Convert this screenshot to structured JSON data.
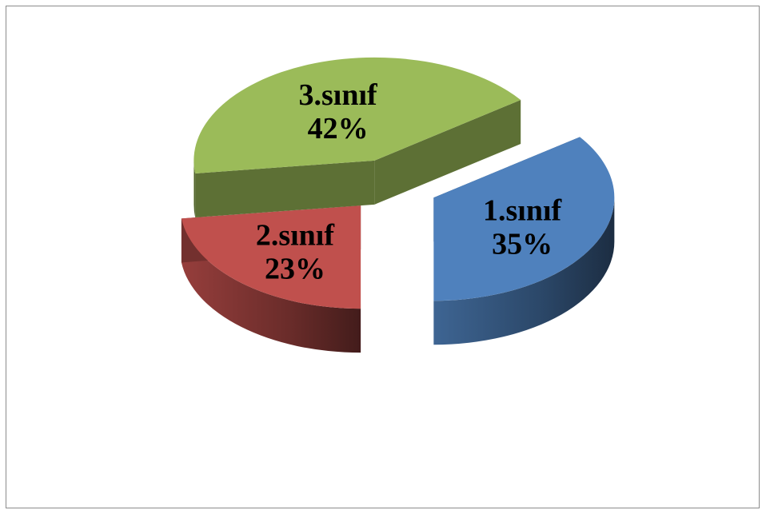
{
  "chart_data": {
    "type": "pie",
    "style": "3d-exploded",
    "title": "",
    "legend": "none",
    "slices": [
      {
        "label": "1.sınıf",
        "value": 35,
        "value_label": "35%",
        "color": "#4f81bd"
      },
      {
        "label": "2.sınıf",
        "value": 23,
        "value_label": "23%",
        "color": "#c0504d"
      },
      {
        "label": "3.sınıf",
        "value": 42,
        "value_label": "42%",
        "color": "#9bbb59"
      }
    ]
  }
}
